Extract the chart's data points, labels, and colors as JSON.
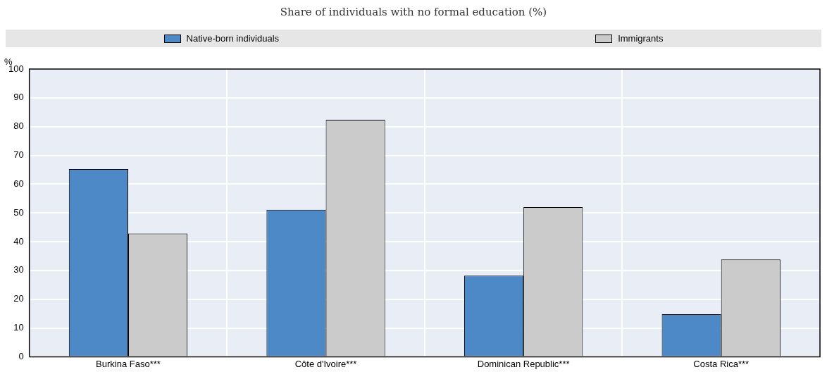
{
  "chart_data": {
    "type": "bar",
    "title": "Share of individuals with no formal education (%)",
    "ylabel": "%",
    "categories": [
      "Burkina Faso***",
      "Côte d'Ivoire***",
      "Dominican Republic***",
      "Costa Rica***"
    ],
    "series": [
      {
        "name": "Native-born individuals",
        "color": "#4e89c7",
        "values": [
          65.2,
          51.1,
          28.2,
          14.8
        ]
      },
      {
        "name": "Immigrants",
        "color": "#cbcbcb",
        "values": [
          42.8,
          82.4,
          52,
          33.8
        ]
      }
    ],
    "ylim": [
      0,
      100
    ],
    "yticks": [
      0,
      10,
      20,
      30,
      40,
      50,
      60,
      70,
      80,
      90,
      100
    ],
    "grid": true,
    "legend": "top"
  }
}
